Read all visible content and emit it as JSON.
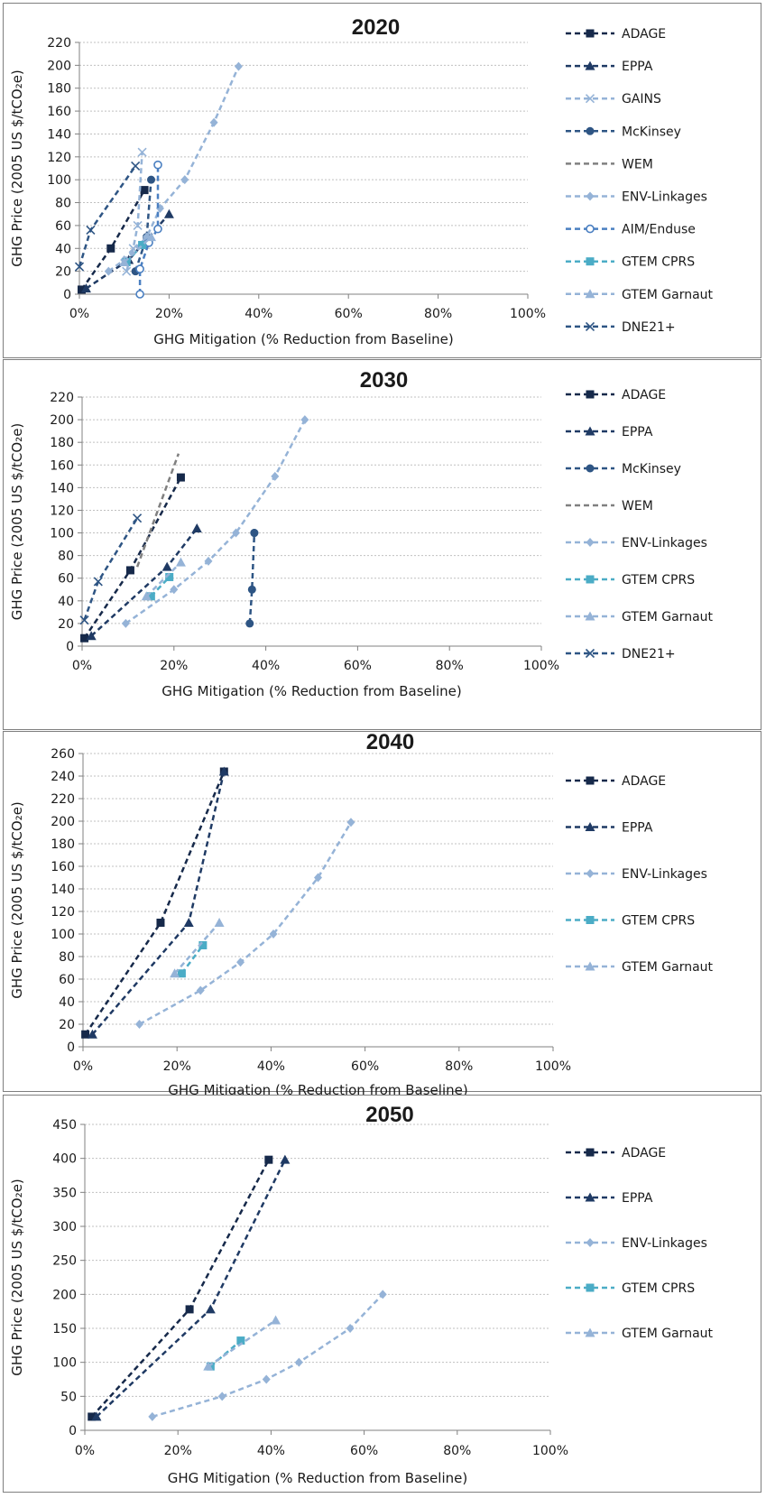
{
  "chart_data": [
    {
      "type": "line",
      "title": "2020",
      "xlabel": "GHG Mitigation (% Reduction from Baseline)",
      "ylabel": "GHG Price (2005 US $/tCO₂e)",
      "xlim": [
        0,
        100
      ],
      "ylim": [
        0,
        220
      ],
      "xticks": [
        "0%",
        "20%",
        "40%",
        "60%",
        "80%",
        "100%"
      ],
      "yticks": [
        "0",
        "20",
        "40",
        "60",
        "80",
        "100",
        "120",
        "140",
        "160",
        "180",
        "200",
        "220"
      ],
      "legend_position": "right",
      "series": [
        {
          "name": "ADAGE",
          "color": "#16294a",
          "marker": "square",
          "x": [
            0.5,
            7,
            14.5
          ],
          "y": [
            4,
            40,
            91
          ]
        },
        {
          "name": "EPPA",
          "color": "#1f3a64",
          "marker": "triangle",
          "x": [
            1.5,
            11,
            20
          ],
          "y": [
            5,
            30,
            70
          ]
        },
        {
          "name": "GAINS",
          "color": "#95b3d7",
          "marker": "x",
          "x": [
            10.5,
            12,
            13,
            14
          ],
          "y": [
            20,
            40,
            60,
            124
          ]
        },
        {
          "name": "McKinsey",
          "color": "#2e5584",
          "marker": "circle",
          "x": [
            12.5,
            15,
            16
          ],
          "y": [
            20,
            50,
            100
          ]
        },
        {
          "name": "WEM",
          "color": "#808080",
          "marker": "none",
          "x": [],
          "y": []
        },
        {
          "name": "ENV-Linkages",
          "color": "#95b3d7",
          "marker": "diamond",
          "x": [
            6.5,
            10,
            15,
            18,
            23.5,
            30,
            35.5
          ],
          "y": [
            20,
            30,
            50,
            75,
            100,
            150,
            199
          ]
        },
        {
          "name": "AIM/Enduse",
          "color": "#4a7fc1",
          "marker": "open-circle",
          "x": [
            13.5,
            13.5,
            15.5,
            17.5,
            17.5
          ],
          "y": [
            0,
            22,
            45,
            57,
            113
          ]
        },
        {
          "name": "GTEM CPRS",
          "color": "#4bacc6",
          "marker": "square",
          "x": [
            10.5,
            14
          ],
          "y": [
            28,
            43
          ]
        },
        {
          "name": "GTEM Garnaut",
          "color": "#95b3d7",
          "marker": "triangle",
          "x": [
            10,
            16
          ],
          "y": [
            28,
            50
          ]
        },
        {
          "name": "DNE21+",
          "color": "#2e5584",
          "marker": "x",
          "x": [
            0,
            2.5,
            12.5
          ],
          "y": [
            24,
            56,
            112
          ]
        }
      ]
    },
    {
      "type": "line",
      "title": "2030",
      "xlabel": "GHG Mitigation (% Reduction from Baseline)",
      "ylabel": "GHG Price (2005 US $/tCO₂e)",
      "xlim": [
        0,
        100
      ],
      "ylim": [
        0,
        220
      ],
      "xticks": [
        "0%",
        "20%",
        "40%",
        "60%",
        "80%",
        "100%"
      ],
      "yticks": [
        "0",
        "20",
        "40",
        "60",
        "80",
        "100",
        "120",
        "140",
        "160",
        "180",
        "200",
        "220"
      ],
      "legend_position": "right",
      "series": [
        {
          "name": "ADAGE",
          "color": "#16294a",
          "marker": "square",
          "x": [
            0.5,
            10.5,
            21.5
          ],
          "y": [
            7,
            67,
            149
          ]
        },
        {
          "name": "EPPA",
          "color": "#1f3a64",
          "marker": "triangle",
          "x": [
            2,
            18.5,
            25
          ],
          "y": [
            9,
            70,
            104
          ]
        },
        {
          "name": "McKinsey",
          "color": "#2e5584",
          "marker": "circle",
          "x": [
            36.5,
            37,
            37.5,
            37.5
          ],
          "y": [
            20,
            50,
            100,
            100
          ]
        },
        {
          "name": "WEM",
          "color": "#808080",
          "marker": "none",
          "x": [
            12,
            21
          ],
          "y": [
            70,
            170
          ]
        },
        {
          "name": "ENV-Linkages",
          "color": "#95b3d7",
          "marker": "diamond",
          "x": [
            9.5,
            20,
            27.5,
            33.5,
            42,
            48.5
          ],
          "y": [
            20,
            50,
            75,
            100,
            150,
            200
          ]
        },
        {
          "name": "GTEM CPRS",
          "color": "#4bacc6",
          "marker": "square",
          "x": [
            15,
            19
          ],
          "y": [
            44,
            61
          ]
        },
        {
          "name": "GTEM Garnaut",
          "color": "#95b3d7",
          "marker": "triangle",
          "x": [
            14,
            21.5
          ],
          "y": [
            44,
            74
          ]
        },
        {
          "name": "DNE21+",
          "color": "#2e5584",
          "marker": "x",
          "x": [
            0.5,
            3.5,
            12
          ],
          "y": [
            23,
            57,
            113
          ]
        }
      ]
    },
    {
      "type": "line",
      "title": "2040",
      "xlabel": "GHG Mitigation (% Reduction from Baseline)",
      "ylabel": "GHG Price (2005 US $/tCO₂e)",
      "xlim": [
        0,
        100
      ],
      "ylim": [
        0,
        260
      ],
      "xticks": [
        "0%",
        "20%",
        "40%",
        "60%",
        "80%",
        "100%"
      ],
      "yticks": [
        "0",
        "20",
        "40",
        "60",
        "80",
        "100",
        "120",
        "140",
        "160",
        "180",
        "200",
        "220",
        "240",
        "260"
      ],
      "legend_position": "right",
      "series": [
        {
          "name": "ADAGE",
          "color": "#16294a",
          "marker": "square",
          "x": [
            0.5,
            16.5,
            30
          ],
          "y": [
            11,
            110,
            244
          ]
        },
        {
          "name": "EPPA",
          "color": "#1f3a64",
          "marker": "triangle",
          "x": [
            2,
            22.5,
            30
          ],
          "y": [
            11,
            110,
            244
          ]
        },
        {
          "name": "ENV-Linkages",
          "color": "#95b3d7",
          "marker": "diamond",
          "x": [
            12,
            25,
            33.5,
            40.5,
            50,
            57
          ],
          "y": [
            20,
            50,
            75,
            100,
            150,
            199
          ]
        },
        {
          "name": "GTEM CPRS",
          "color": "#4bacc6",
          "marker": "square",
          "x": [
            21,
            25.5
          ],
          "y": [
            65,
            90
          ]
        },
        {
          "name": "GTEM Garnaut",
          "color": "#95b3d7",
          "marker": "triangle",
          "x": [
            19.5,
            29
          ],
          "y": [
            65,
            110
          ]
        }
      ]
    },
    {
      "type": "line",
      "title": "2050",
      "xlabel": "GHG Mitigation (% Reduction from Baseline)",
      "ylabel": "GHG Price (2005 US $/tCO₂e)",
      "xlim": [
        0,
        100
      ],
      "ylim": [
        0,
        450
      ],
      "xticks": [
        "0%",
        "20%",
        "40%",
        "60%",
        "80%",
        "100%"
      ],
      "yticks": [
        "0",
        "50",
        "100",
        "150",
        "200",
        "250",
        "300",
        "350",
        "400",
        "450"
      ],
      "legend_position": "right",
      "series": [
        {
          "name": "ADAGE",
          "color": "#16294a",
          "marker": "square",
          "x": [
            1.5,
            22.5,
            39.5
          ],
          "y": [
            20,
            178,
            398
          ]
        },
        {
          "name": "EPPA",
          "color": "#1f3a64",
          "marker": "triangle",
          "x": [
            2.5,
            27,
            43
          ],
          "y": [
            20,
            178,
            398
          ]
        },
        {
          "name": "ENV-Linkages",
          "color": "#95b3d7",
          "marker": "diamond",
          "x": [
            14.5,
            29.5,
            39,
            46,
            57,
            64
          ],
          "y": [
            20,
            50,
            75,
            100,
            150,
            200
          ]
        },
        {
          "name": "GTEM CPRS",
          "color": "#4bacc6",
          "marker": "square",
          "x": [
            27,
            33.5
          ],
          "y": [
            94,
            132
          ]
        },
        {
          "name": "GTEM Garnaut",
          "color": "#95b3d7",
          "marker": "triangle",
          "x": [
            26.5,
            41
          ],
          "y": [
            94,
            162
          ]
        }
      ]
    }
  ]
}
